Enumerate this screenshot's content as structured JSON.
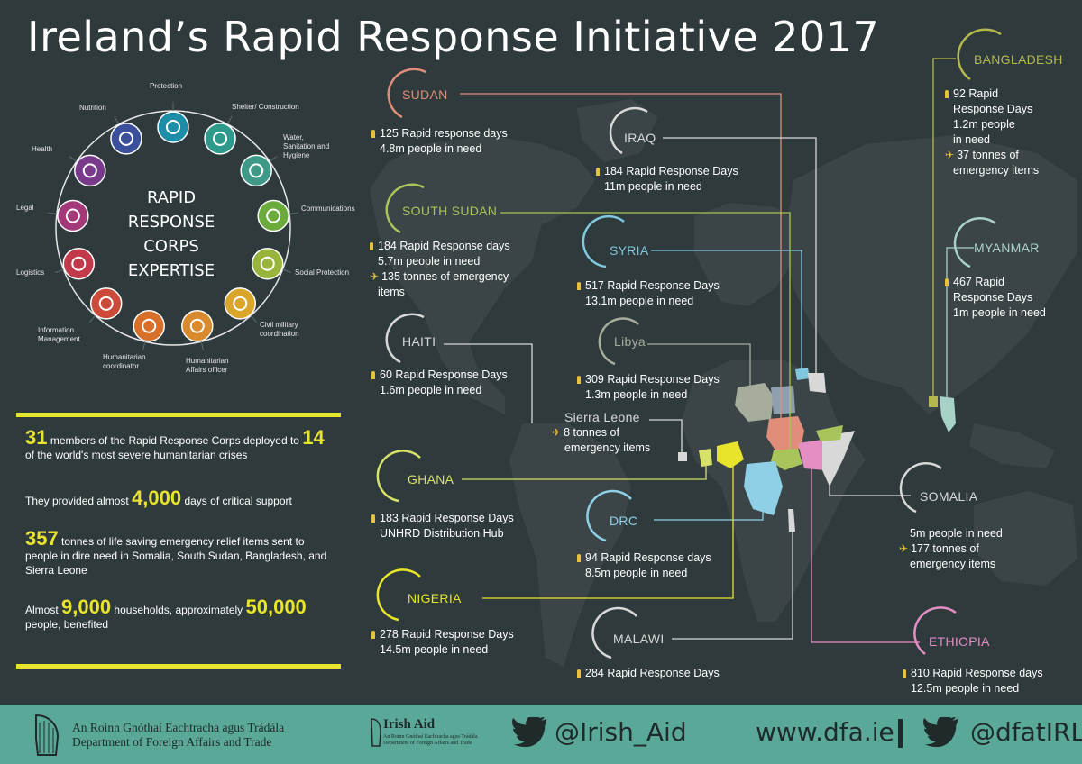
{
  "title": "Ireland’s Rapid Response Initiative 2017",
  "corps": {
    "title_lines": [
      "RAPID",
      "RESPONSE",
      "CORPS",
      "EXPERTISE"
    ],
    "expertise": [
      {
        "label": "Protection",
        "icon": "protection-icon",
        "color": "#1e8ea8"
      },
      {
        "label": "Shelter/ Construction",
        "icon": "shelter-icon",
        "color": "#2e9a8c"
      },
      {
        "label": "Water, Sanitation and Hygiene",
        "icon": "water-tap-icon",
        "color": "#3e9a86"
      },
      {
        "label": "Communications",
        "icon": "speech-bubble-icon",
        "color": "#6aab3c"
      },
      {
        "label": "Social Protection",
        "icon": "social-group-icon",
        "color": "#98b43a"
      },
      {
        "label": "Civil military coordination",
        "icon": "handshake-icon",
        "color": "#d9a52a"
      },
      {
        "label": "Humanitarian Affairs officer",
        "icon": "presentation-icon",
        "color": "#d88a2c"
      },
      {
        "label": "Humanitarian coordinator",
        "icon": "people-icon",
        "color": "#d8702c"
      },
      {
        "label": "Information Management",
        "icon": "chart-icon",
        "color": "#cc4a3a"
      },
      {
        "label": "Logistics",
        "icon": "truck-icon",
        "color": "#c23a4a"
      },
      {
        "label": "Legal",
        "icon": "scales-icon",
        "color": "#a4397a"
      },
      {
        "label": "Health",
        "icon": "caduceus-icon",
        "color": "#7a3a8c"
      },
      {
        "label": "Nutrition",
        "icon": "baby-icon",
        "color": "#3b4f9a"
      }
    ]
  },
  "stats": {
    "s1_num": "31",
    "s1_text": " members of the Rapid Response Corps deployed to ",
    "s1_num2": "14",
    "s1_text2": "of the world's most severe humanitarian crises",
    "s2_text": "They provided almost ",
    "s2_num": "4,000",
    "s2_text2": " days of critical support",
    "s3_num": "357",
    "s3_text": " tonnes of life saving emergency relief items sent to people in dire need in Somalia, South Sudan, Bangladesh, and Sierra Leone",
    "s4_text": "Almost ",
    "s4_num": "9,000",
    "s4_text2": " households, approximately ",
    "s4_num2": "50,000",
    "s4_text3": "people, benefited"
  },
  "countries": {
    "sudan": {
      "name": "SUDAN",
      "color": "#e08e7a",
      "l1": "125 Rapid response days",
      "l2": "4.8m people in need"
    },
    "iraq": {
      "name": "IRAQ",
      "color": "#d8d8d8",
      "l1": "184 Rapid Response Days",
      "l2": "11m people in need"
    },
    "south_sudan": {
      "name": "SOUTH SUDAN",
      "color": "#a7c55a",
      "l1": "184 Rapid Response days",
      "l2": "5.7m people in need",
      "l3": "135 tonnes of emergency",
      "l4": "items"
    },
    "syria": {
      "name": "SYRIA",
      "color": "#7fc8dd",
      "l1": "517 Rapid Response Days",
      "l2": "13.1m people in need"
    },
    "haiti": {
      "name": "HAITI",
      "color": "#d8d8d8",
      "l1": "60 Rapid Response Days",
      "l2": "1.6m people in need"
    },
    "libya": {
      "name": "Libya",
      "color": "#a6ad9c",
      "l1": "309 Rapid Response Days",
      "l2": "1.3m people in need"
    },
    "sierra_leone": {
      "name": "Sierra Leone",
      "color": "#d8d8d8",
      "l1": "8 tonnes of",
      "l2": "emergency items"
    },
    "ghana": {
      "name": "GHANA",
      "color": "#d8e16a",
      "l1": "183 Rapid Response Days",
      "l2": "UNHRD Distribution Hub"
    },
    "drc": {
      "name": "DRC",
      "color": "#8fd0e6",
      "l1": "94 Rapid Response days",
      "l2": "8.5m people in need"
    },
    "nigeria": {
      "name": "NIGERIA",
      "color": "#e8e42c",
      "l1": "278 Rapid Response Days",
      "l2": "14.5m people in need"
    },
    "malawi": {
      "name": "MALAWI",
      "color": "#d8d8d8",
      "l1": "284 Rapid Response Days"
    },
    "bangladesh": {
      "name": "BANGLADESH",
      "color": "#b5b84e",
      "l1": "92 Rapid",
      "l2": "Response Days",
      "l3": "1.2m people",
      "l4": "in need",
      "l5": "37 tonnes of",
      "l6": "emergency items"
    },
    "myanmar": {
      "name": "MYANMAR",
      "color": "#a8d2c8",
      "l1": "467 Rapid",
      "l2": "Response Days",
      "l3": "1m people in need"
    },
    "somalia": {
      "name": "SOMALIA",
      "color": "#d8d8d8",
      "l1": "5m people in need",
      "l2": "177 tonnes of",
      "l3": "emergency items"
    },
    "ethiopia": {
      "name": "ETHIOPIA",
      "color": "#e38fc4",
      "l1": "810 Rapid Response days",
      "l2": "12.5m people in need"
    }
  },
  "footer": {
    "dept_irish": "An Roinn Gnóthaí Eachtracha agus Trádála",
    "dept_english": "Department of Foreign Affairs and Trade",
    "irish_aid": "Irish Aid",
    "ia_sub1": "An Roinn Gnóthaí Eachtracha agus Trádála",
    "ia_sub2": "Department of Foreign Affairs and Trade",
    "twitter_handle": "@Irish_Aid",
    "website": "www.dfa.ie",
    "twitter_handle2": "@dfatIRL"
  }
}
